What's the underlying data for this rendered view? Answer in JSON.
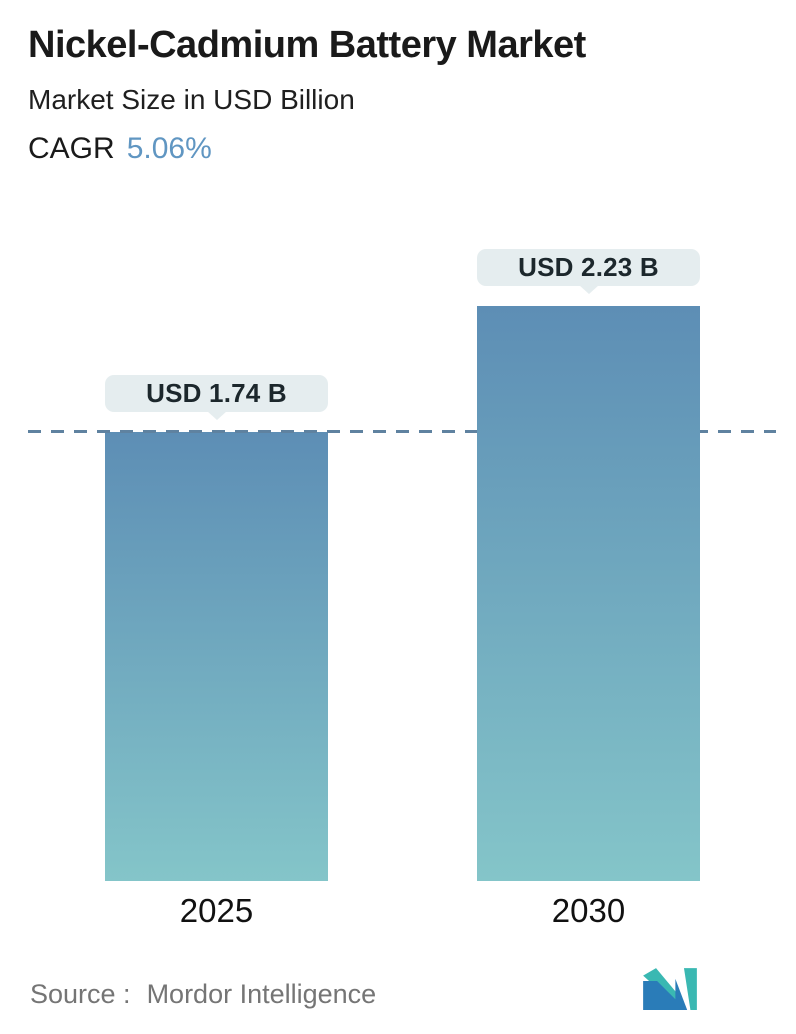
{
  "header": {
    "title": "Nickel-Cadmium Battery Market",
    "subtitle": "Market Size in USD Billion",
    "cagr_label": "CAGR",
    "cagr_value": "5.06%"
  },
  "chart_data": {
    "type": "bar",
    "categories": [
      "2025",
      "2030"
    ],
    "values": [
      1.74,
      2.23
    ],
    "value_labels": [
      "USD 1.74 B",
      "USD 2.23 B"
    ],
    "title": "Nickel-Cadmium Battery Market",
    "subtitle": "Market Size in USD Billion",
    "unit": "USD Billion",
    "cagr": "5.06%",
    "ylim": [
      0,
      2.4
    ],
    "legend": "none",
    "grid": "single horizontal dashed reference line at first bar value (1.74)",
    "bar_gradient_top": "#5d8eb5",
    "bar_gradient_bottom": "#84c5c9",
    "reference_line_color": "#5f82a0",
    "value_label_background": "#e5edef"
  },
  "footer": {
    "source_label": "Source :",
    "source_value": "Mordor Intelligence"
  },
  "colors": {
    "accent_blue": "#6096c2",
    "text_dark": "#1a1a1a",
    "source_gray": "#757575",
    "logo_blue": "#2a7cb8",
    "logo_teal": "#3ab8b2"
  }
}
